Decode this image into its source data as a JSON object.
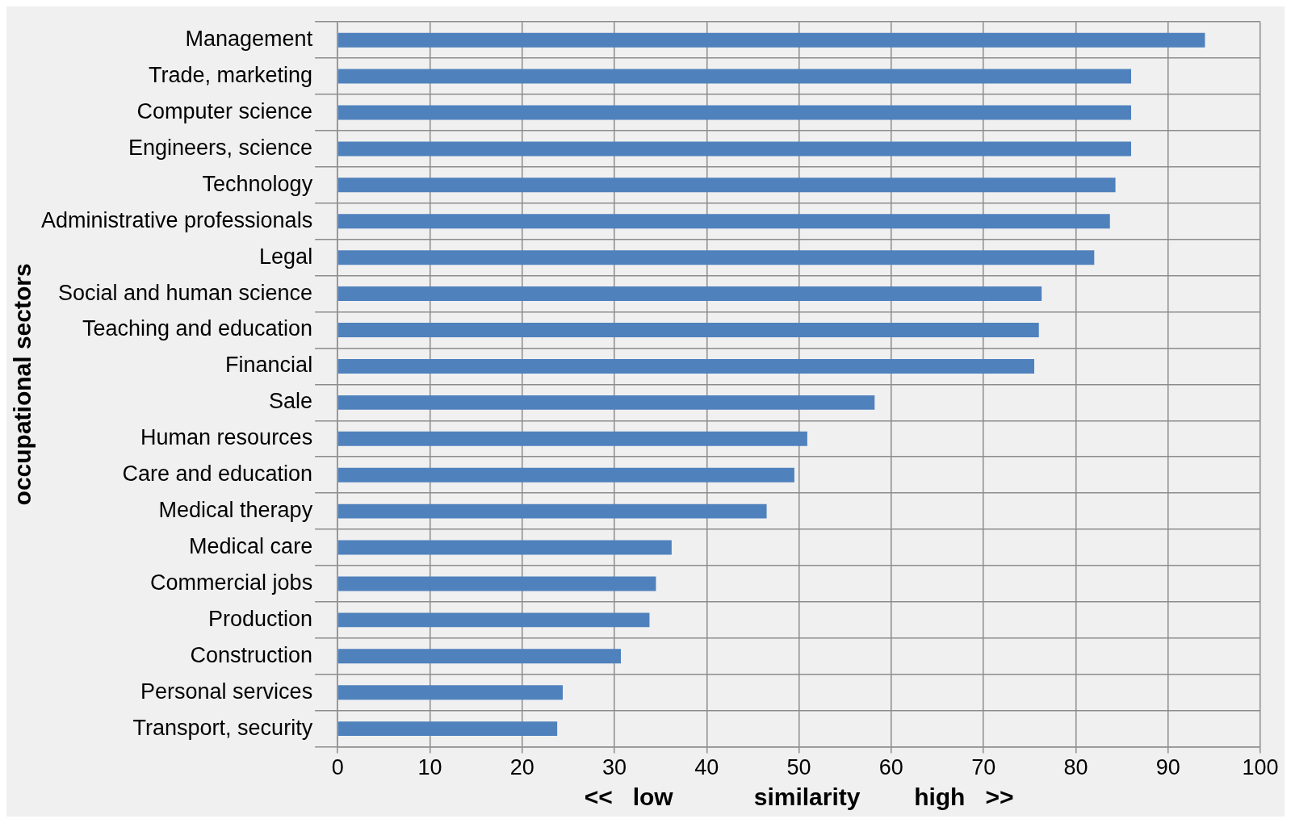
{
  "chart_data": {
    "type": "bar",
    "orientation": "horizontal",
    "xlabel": "<<   low            similarity        high   >>",
    "ylabel": "occupational sectors",
    "categories": [
      "Management",
      "Trade, marketing",
      "Computer science",
      "Engineers, science",
      "Technology",
      "Administrative professionals",
      "Legal",
      "Social and human science",
      "Teaching and education",
      "Financial",
      "Sale",
      "Human resources",
      "Care and education",
      "Medical therapy",
      "Medical care",
      "Commercial jobs",
      "Production",
      "Construction",
      "Personal services",
      "Transport, security"
    ],
    "values": [
      94,
      86,
      86,
      86,
      84.3,
      83.7,
      82,
      76.3,
      76,
      75.5,
      58.2,
      50.9,
      49.5,
      46.5,
      36.2,
      34.5,
      33.8,
      30.7,
      24.4,
      23.8
    ],
    "color": "#4f81bd",
    "xlim": [
      0,
      100
    ],
    "xticks": [
      0,
      10,
      20,
      30,
      40,
      50,
      60,
      70,
      80,
      90,
      100
    ],
    "grid": true,
    "legend": false
  }
}
